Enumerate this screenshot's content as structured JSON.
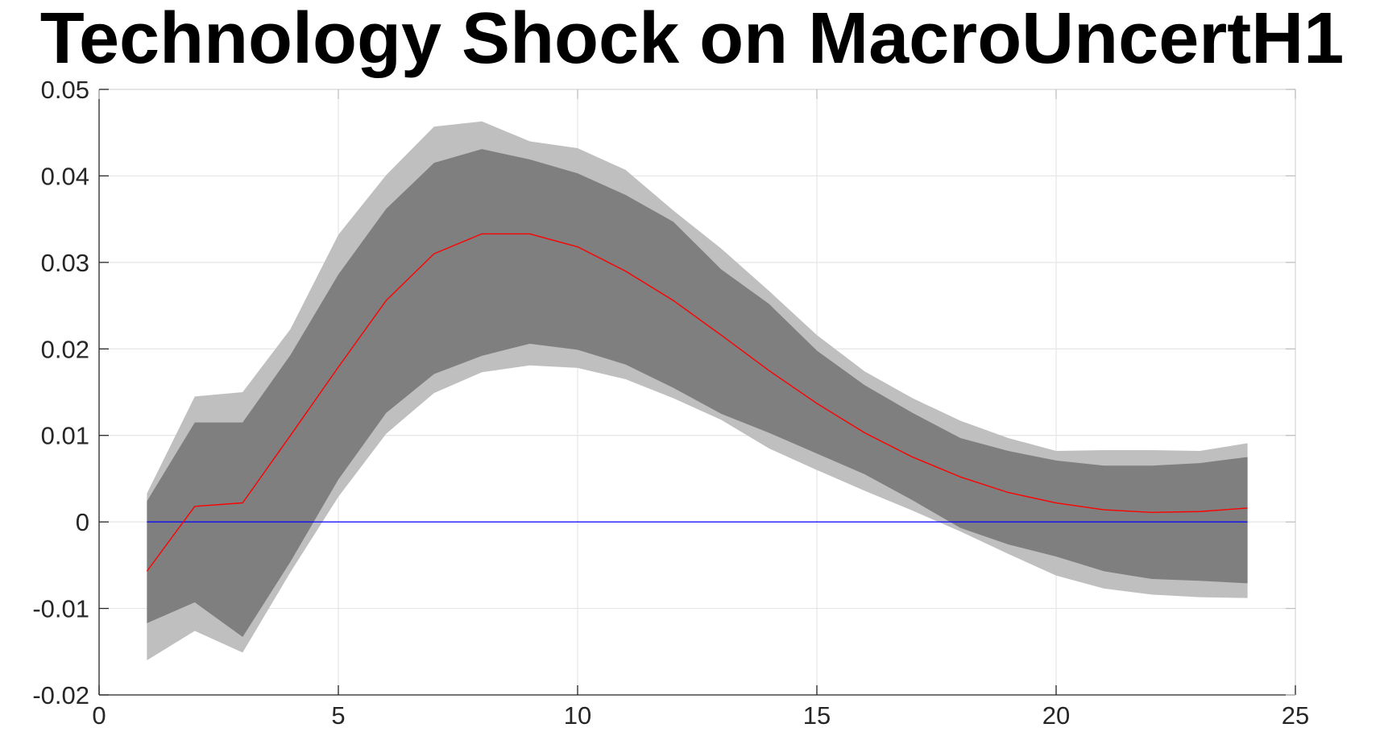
{
  "chart_data": {
    "type": "line",
    "title": "Technology Shock on MacroUncertH1",
    "xlabel": "",
    "ylabel": "",
    "xlim": [
      0,
      25
    ],
    "ylim": [
      -0.02,
      0.05
    ],
    "grid": true,
    "x_ticks": [
      0,
      5,
      10,
      15,
      20,
      25
    ],
    "x_tick_labels": [
      "0",
      "5",
      "10",
      "15",
      "20",
      "25"
    ],
    "y_ticks": [
      -0.02,
      -0.01,
      0,
      0.01,
      0.02,
      0.03,
      0.04,
      0.05
    ],
    "y_tick_labels": [
      "-0.02",
      "-0.01",
      "0",
      "0.01",
      "0.02",
      "0.03",
      "0.04",
      "0.05"
    ],
    "x": [
      1,
      2,
      3,
      4,
      5,
      6,
      7,
      8,
      9,
      10,
      11,
      12,
      13,
      14,
      15,
      16,
      17,
      18,
      19,
      20,
      21,
      22,
      23,
      24
    ],
    "series": [
      {
        "role": "outer_band_upper",
        "color": "#bfbfbf",
        "values": [
          0.0033,
          0.0145,
          0.015,
          0.0223,
          0.0332,
          0.0401,
          0.0457,
          0.0463,
          0.044,
          0.0432,
          0.0407,
          0.036,
          0.0316,
          0.0267,
          0.0216,
          0.0174,
          0.0143,
          0.0117,
          0.0097,
          0.0082,
          0.0083,
          0.0083,
          0.0082,
          0.0091
        ]
      },
      {
        "role": "outer_band_lower",
        "color": "#bfbfbf",
        "values": [
          -0.016,
          -0.0126,
          -0.0151,
          -0.0058,
          0.0029,
          0.0102,
          0.0149,
          0.0173,
          0.0181,
          0.0178,
          0.0165,
          0.0143,
          0.0118,
          0.0085,
          0.006,
          0.0036,
          0.0013,
          -0.0011,
          -0.0037,
          -0.0062,
          -0.0077,
          -0.0084,
          -0.0087,
          -0.0088
        ]
      },
      {
        "role": "inner_band_upper",
        "color": "#7f7f7f",
        "values": [
          0.0024,
          0.0115,
          0.0115,
          0.0193,
          0.0286,
          0.0362,
          0.0415,
          0.0431,
          0.0419,
          0.0403,
          0.0378,
          0.0347,
          0.0292,
          0.0252,
          0.0198,
          0.0158,
          0.0126,
          0.0097,
          0.0082,
          0.0071,
          0.0065,
          0.0065,
          0.0068,
          0.0075
        ]
      },
      {
        "role": "inner_band_lower",
        "color": "#7f7f7f",
        "values": [
          -0.0117,
          -0.0093,
          -0.0133,
          -0.0046,
          0.0049,
          0.0126,
          0.0171,
          0.0192,
          0.0206,
          0.0199,
          0.0182,
          0.0155,
          0.0125,
          0.0103,
          0.0079,
          0.0055,
          0.0025,
          -0.0007,
          -0.0026,
          -0.004,
          -0.0057,
          -0.0066,
          -0.0068,
          -0.0071
        ]
      },
      {
        "role": "median_response",
        "color": "#ff0000",
        "values": [
          -0.0057,
          0.0018,
          0.0022,
          0.01,
          0.0179,
          0.0256,
          0.031,
          0.0333,
          0.0333,
          0.0318,
          0.029,
          0.0256,
          0.0216,
          0.0175,
          0.0137,
          0.0103,
          0.0075,
          0.0052,
          0.0034,
          0.0022,
          0.0014,
          0.0011,
          0.0012,
          0.0016
        ]
      },
      {
        "role": "zero_line",
        "color": "#0000ff",
        "values": [
          0,
          0,
          0,
          0,
          0,
          0,
          0,
          0,
          0,
          0,
          0,
          0,
          0,
          0,
          0,
          0,
          0,
          0,
          0,
          0,
          0,
          0,
          0,
          0
        ]
      }
    ]
  },
  "colors": {
    "grid": "#e5e5e5",
    "axis": "#262626",
    "outer_band": "#bfbfbf",
    "inner_band": "#7f7f7f",
    "median_line": "#ff0000",
    "zero_line": "#0000ff"
  }
}
